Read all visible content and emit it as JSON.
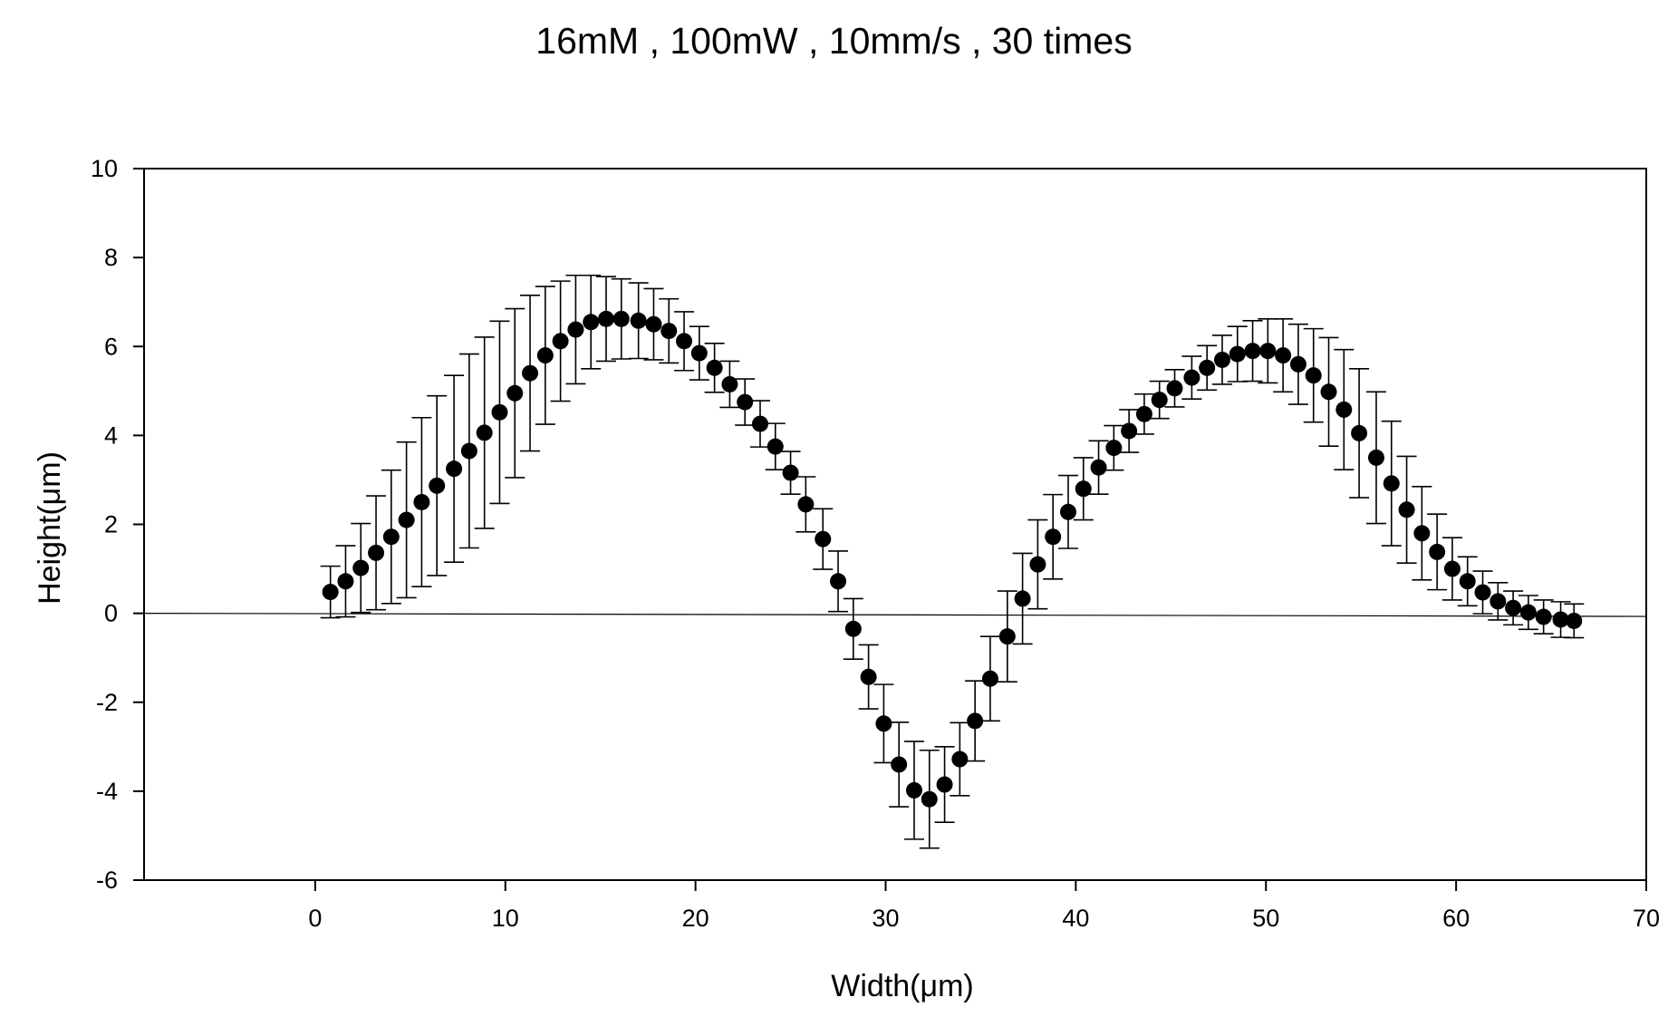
{
  "chart_data": {
    "type": "scatter",
    "title": "16mM , 100mW , 10mm/s , 30 times",
    "xlabel": "Width(μm)",
    "ylabel": "Height(μm)",
    "xlim": [
      -9,
      70
    ],
    "ylim": [
      -6,
      10
    ],
    "xticks": [
      0,
      10,
      20,
      30,
      40,
      50,
      60,
      70
    ],
    "yticks": [
      -6,
      -4,
      -2,
      0,
      2,
      4,
      6,
      8,
      10
    ],
    "grid": false,
    "legend": "none",
    "baseline": {
      "y_start": 0.0,
      "y_end": -0.07
    },
    "series": [
      {
        "name": "Height",
        "marker": "filled-circle",
        "color": "#000000",
        "x": [
          0.8,
          1.6,
          2.4,
          3.2,
          4.0,
          4.8,
          5.6,
          6.4,
          7.3,
          8.1,
          8.9,
          9.7,
          10.5,
          11.3,
          12.1,
          12.9,
          13.7,
          14.5,
          15.3,
          16.1,
          17.0,
          17.8,
          18.6,
          19.4,
          20.2,
          21.0,
          21.8,
          22.6,
          23.4,
          24.2,
          25.0,
          25.8,
          26.7,
          27.5,
          28.3,
          29.1,
          29.9,
          30.7,
          31.5,
          32.3,
          33.1,
          33.9,
          34.7,
          35.5,
          36.4,
          37.2,
          38.0,
          38.8,
          39.6,
          40.4,
          41.2,
          42.0,
          42.8,
          43.6,
          44.4,
          45.2,
          46.1,
          46.9,
          47.7,
          48.5,
          49.3,
          50.1,
          50.9,
          51.7,
          52.5,
          53.3,
          54.1,
          54.9,
          55.8,
          56.6,
          57.4,
          58.2,
          59.0,
          59.8,
          60.6,
          61.4,
          62.2,
          63.0,
          63.8,
          64.6,
          65.5,
          66.2
        ],
        "y": [
          0.48,
          0.72,
          1.02,
          1.36,
          1.72,
          2.1,
          2.5,
          2.87,
          3.25,
          3.65,
          4.06,
          4.52,
          4.95,
          5.4,
          5.8,
          6.12,
          6.38,
          6.55,
          6.62,
          6.62,
          6.58,
          6.5,
          6.35,
          6.12,
          5.85,
          5.52,
          5.15,
          4.75,
          4.26,
          3.75,
          3.16,
          2.45,
          1.67,
          0.72,
          -0.35,
          -1.43,
          -2.48,
          -3.4,
          -3.98,
          -4.18,
          -3.85,
          -3.28,
          -2.42,
          -1.47,
          -0.52,
          0.33,
          1.1,
          1.72,
          2.28,
          2.8,
          3.28,
          3.72,
          4.1,
          4.48,
          4.8,
          5.06,
          5.3,
          5.52,
          5.7,
          5.83,
          5.9,
          5.9,
          5.8,
          5.6,
          5.35,
          4.98,
          4.58,
          4.05,
          3.5,
          2.92,
          2.33,
          1.8,
          1.38,
          1.0,
          0.72,
          0.47,
          0.27,
          0.12,
          0.02,
          -0.08,
          -0.14,
          -0.17
        ],
        "error": [
          0.58,
          0.8,
          1.0,
          1.28,
          1.5,
          1.75,
          1.9,
          2.02,
          2.1,
          2.18,
          2.15,
          2.05,
          1.9,
          1.75,
          1.55,
          1.35,
          1.22,
          1.05,
          0.95,
          0.9,
          0.85,
          0.8,
          0.72,
          0.66,
          0.6,
          0.55,
          0.52,
          0.52,
          0.52,
          0.52,
          0.48,
          0.62,
          0.68,
          0.68,
          0.68,
          0.72,
          0.88,
          0.95,
          1.1,
          1.1,
          0.85,
          0.82,
          0.9,
          0.95,
          1.02,
          1.02,
          1.0,
          0.95,
          0.82,
          0.7,
          0.6,
          0.5,
          0.48,
          0.45,
          0.42,
          0.42,
          0.48,
          0.5,
          0.55,
          0.62,
          0.68,
          0.72,
          0.82,
          0.9,
          1.05,
          1.22,
          1.35,
          1.45,
          1.48,
          1.4,
          1.2,
          1.05,
          0.85,
          0.7,
          0.55,
          0.48,
          0.42,
          0.38,
          0.38,
          0.38,
          0.4,
          0.38
        ]
      }
    ]
  }
}
